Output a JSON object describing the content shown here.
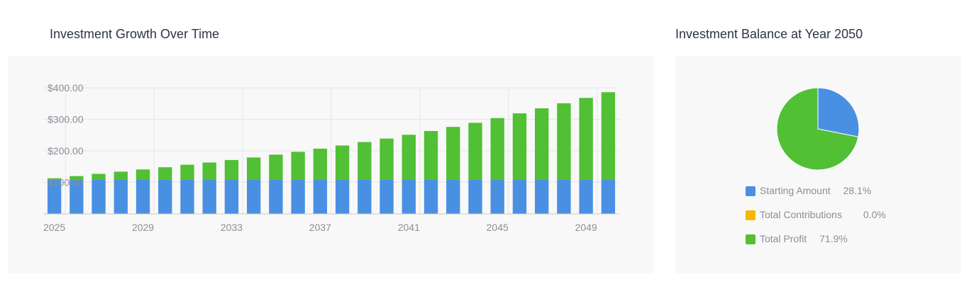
{
  "bar_chart": {
    "title": "Investment Growth Over Time"
  },
  "pie_chart": {
    "title": "Investment Balance at Year 2050",
    "legend": [
      {
        "name": "Starting Amount",
        "percent_label": "28.1%",
        "color": "#4a90e2"
      },
      {
        "name": "Total Contributions",
        "percent_label": "0.0%",
        "color": "#f5b800"
      },
      {
        "name": "Total Profit",
        "percent_label": "71.9%",
        "color": "#51c034"
      }
    ]
  },
  "colors": {
    "starting": "#4a90e2",
    "contributions": "#f5b800",
    "profit": "#51c034",
    "panel_bg": "#f8f8f8",
    "grid": "#e6e6e6",
    "tick_text": "#8a8f98"
  },
  "chart_data": [
    {
      "type": "bar",
      "stacked": true,
      "title": "Investment Growth Over Time",
      "x": [
        2025,
        2026,
        2027,
        2028,
        2029,
        2030,
        2031,
        2032,
        2033,
        2034,
        2035,
        2036,
        2037,
        2038,
        2039,
        2040,
        2041,
        2042,
        2043,
        2044,
        2045,
        2046,
        2047,
        2048,
        2049,
        2050
      ],
      "x_tick_labels": [
        "2025",
        "2029",
        "2033",
        "2037",
        "2041",
        "2045",
        "2049"
      ],
      "y_tick_labels": [
        "$100.00",
        "$200.00",
        "$300.00",
        "$400.00"
      ],
      "y_ticks": [
        100,
        200,
        300,
        400
      ],
      "ylim": [
        0,
        400
      ],
      "grid": true,
      "series": [
        {
          "values": [
            108,
            108,
            108,
            108,
            108,
            108,
            108,
            108,
            108,
            108,
            108,
            108,
            108,
            108,
            108,
            108,
            108,
            108,
            108,
            108,
            108,
            108,
            108,
            108,
            108,
            108
          ],
          "color": "#4a90e2"
        },
        {
          "values": [
            0,
            0,
            0,
            0,
            0,
            0,
            0,
            0,
            0,
            0,
            0,
            0,
            0,
            0,
            0,
            0,
            0,
            0,
            0,
            0,
            0,
            0,
            0,
            0,
            0,
            0
          ],
          "color": "#f5b800"
        },
        {
          "values": [
            5,
            12,
            19,
            26,
            33,
            40,
            48,
            55,
            63,
            71,
            80,
            89,
            99,
            109,
            120,
            131,
            143,
            155,
            168,
            181,
            196,
            211,
            227,
            243,
            260,
            278
          ],
          "color": "#51c034"
        }
      ]
    },
    {
      "type": "pie",
      "title": "Investment Balance at Year 2050",
      "labels": [
        "Starting Amount",
        "Total Contributions",
        "Total Profit"
      ],
      "values": [
        28.1,
        0.0,
        71.9
      ],
      "colors": [
        "#4a90e2",
        "#f5b800",
        "#51c034"
      ],
      "legend_placement": "bottom"
    }
  ]
}
